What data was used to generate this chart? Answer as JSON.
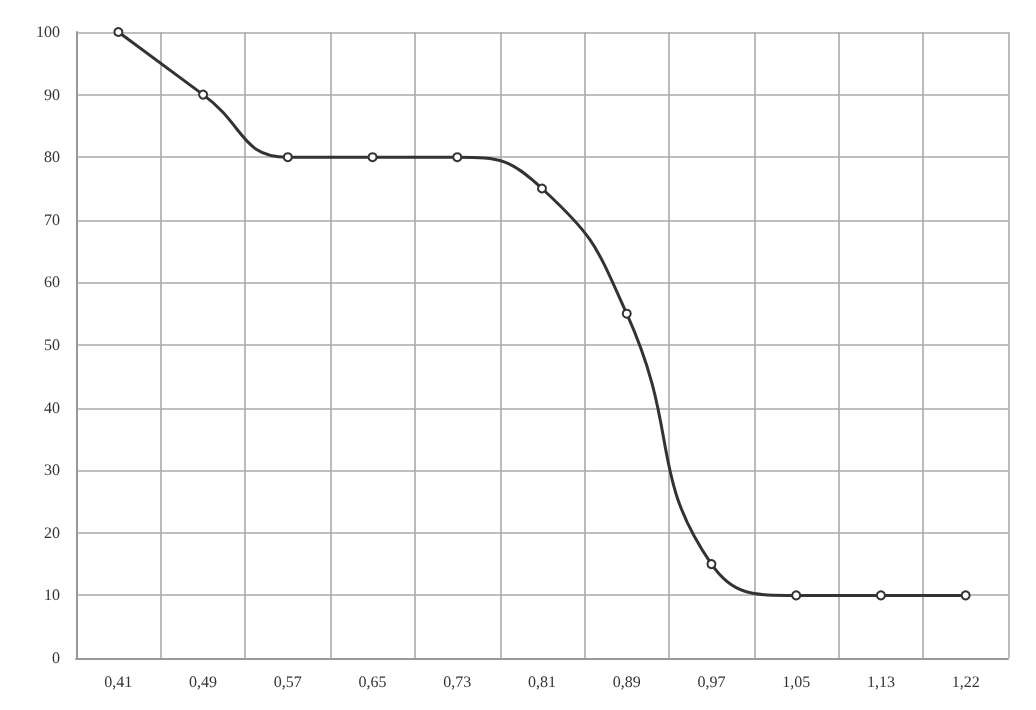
{
  "chart_data": {
    "type": "line",
    "categories": [
      "0,41",
      "0,49",
      "0,57",
      "0,65",
      "0,73",
      "0,81",
      "0,89",
      "0,97",
      "1,05",
      "1,13",
      "1,22"
    ],
    "series": [
      {
        "color": "#333333",
        "values": [
          100,
          90,
          80,
          80,
          80,
          75,
          55,
          15,
          10,
          10,
          10
        ]
      }
    ],
    "ylim": [
      0,
      100
    ],
    "yticks": [
      0,
      10,
      20,
      30,
      40,
      50,
      60,
      70,
      80,
      90,
      100
    ],
    "grid": true,
    "marker": "circle",
    "line_style": "solid"
  }
}
